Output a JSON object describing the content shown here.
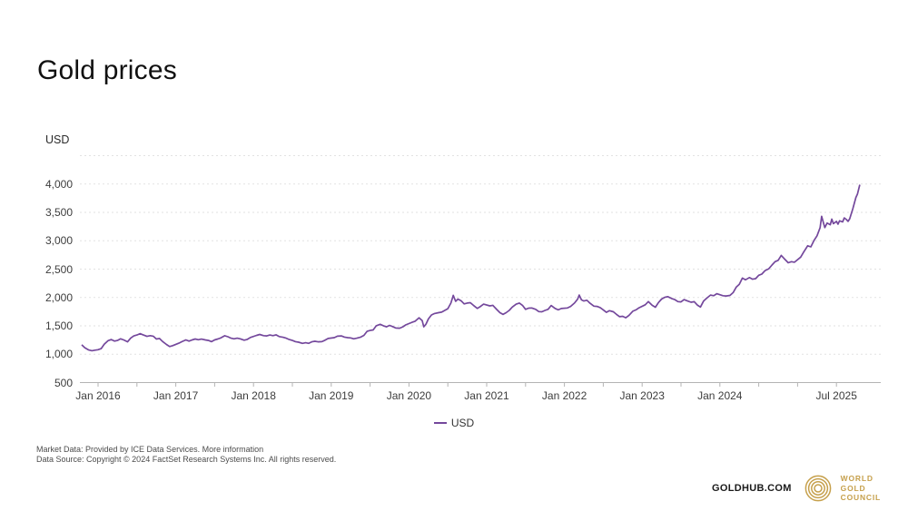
{
  "header": {
    "title": "Gold prices"
  },
  "chart_data": {
    "type": "line",
    "title": "Gold prices",
    "unit_label": "USD",
    "grid": "dashed-horizontal",
    "accent_color": "#74489c",
    "legend": {
      "position": "bottom",
      "label": "USD"
    },
    "y_axis": {
      "min": 500,
      "max": 4500,
      "ticks": [
        {
          "value": 500,
          "label": "500"
        },
        {
          "value": 1000,
          "label": "1,000"
        },
        {
          "value": 1500,
          "label": "1,500"
        },
        {
          "value": 2000,
          "label": "2,000"
        },
        {
          "value": 2500,
          "label": "2,500"
        },
        {
          "value": 3000,
          "label": "3,000"
        },
        {
          "value": 3500,
          "label": "3,500"
        },
        {
          "value": 4000,
          "label": "4,000"
        }
      ],
      "grid_values": [
        1000,
        1500,
        2000,
        2500,
        3000,
        3500,
        4000,
        4500
      ]
    },
    "x_axis": {
      "tick_positions": [
        2016,
        2016.5,
        2017,
        2017.5,
        2018,
        2018.5,
        2019,
        2019.5,
        2020,
        2020.5,
        2021,
        2021.5,
        2022,
        2022.5,
        2023,
        2023.5,
        2024,
        2024.5,
        2025,
        2025.5
      ],
      "labels": [
        {
          "x": 2016,
          "label": "Jan 2016"
        },
        {
          "x": 2017,
          "label": "Jan 2017"
        },
        {
          "x": 2018,
          "label": "Jan 2018"
        },
        {
          "x": 2019,
          "label": "Jan 2019"
        },
        {
          "x": 2020,
          "label": "Jan 2020"
        },
        {
          "x": 2021,
          "label": "Jan 2021"
        },
        {
          "x": 2022,
          "label": "Jan 2022"
        },
        {
          "x": 2023,
          "label": "Jan 2023"
        },
        {
          "x": 2024,
          "label": "Jan 2024"
        },
        {
          "x": 2025.5,
          "label": "Jul 2025"
        }
      ]
    },
    "series": [
      {
        "name": "USD",
        "color": "#74489c",
        "points": [
          [
            2015.79,
            1165
          ],
          [
            2015.83,
            1115
          ],
          [
            2015.88,
            1075
          ],
          [
            2015.92,
            1062
          ],
          [
            2015.96,
            1072
          ],
          [
            2016.0,
            1080
          ],
          [
            2016.04,
            1098
          ],
          [
            2016.08,
            1175
          ],
          [
            2016.13,
            1240
          ],
          [
            2016.17,
            1258
          ],
          [
            2016.21,
            1232
          ],
          [
            2016.25,
            1242
          ],
          [
            2016.29,
            1272
          ],
          [
            2016.33,
            1252
          ],
          [
            2016.38,
            1218
          ],
          [
            2016.42,
            1285
          ],
          [
            2016.46,
            1322
          ],
          [
            2016.5,
            1338
          ],
          [
            2016.54,
            1362
          ],
          [
            2016.58,
            1342
          ],
          [
            2016.63,
            1315
          ],
          [
            2016.67,
            1328
          ],
          [
            2016.71,
            1318
          ],
          [
            2016.75,
            1268
          ],
          [
            2016.79,
            1278
          ],
          [
            2016.83,
            1225
          ],
          [
            2016.88,
            1172
          ],
          [
            2016.92,
            1135
          ],
          [
            2016.96,
            1152
          ],
          [
            2017.04,
            1195
          ],
          [
            2017.08,
            1222
          ],
          [
            2017.13,
            1252
          ],
          [
            2017.17,
            1232
          ],
          [
            2017.21,
            1252
          ],
          [
            2017.25,
            1268
          ],
          [
            2017.29,
            1255
          ],
          [
            2017.33,
            1266
          ],
          [
            2017.38,
            1252
          ],
          [
            2017.42,
            1242
          ],
          [
            2017.46,
            1222
          ],
          [
            2017.5,
            1252
          ],
          [
            2017.54,
            1268
          ],
          [
            2017.58,
            1288
          ],
          [
            2017.63,
            1326
          ],
          [
            2017.67,
            1308
          ],
          [
            2017.71,
            1282
          ],
          [
            2017.75,
            1272
          ],
          [
            2017.79,
            1282
          ],
          [
            2017.83,
            1272
          ],
          [
            2017.88,
            1248
          ],
          [
            2017.92,
            1262
          ],
          [
            2017.96,
            1296
          ],
          [
            2018.04,
            1332
          ],
          [
            2018.08,
            1348
          ],
          [
            2018.13,
            1328
          ],
          [
            2018.17,
            1322
          ],
          [
            2018.21,
            1338
          ],
          [
            2018.25,
            1328
          ],
          [
            2018.29,
            1342
          ],
          [
            2018.33,
            1312
          ],
          [
            2018.38,
            1298
          ],
          [
            2018.42,
            1282
          ],
          [
            2018.46,
            1258
          ],
          [
            2018.5,
            1242
          ],
          [
            2018.54,
            1222
          ],
          [
            2018.58,
            1212
          ],
          [
            2018.63,
            1192
          ],
          [
            2018.67,
            1202
          ],
          [
            2018.71,
            1192
          ],
          [
            2018.75,
            1218
          ],
          [
            2018.79,
            1228
          ],
          [
            2018.83,
            1218
          ],
          [
            2018.88,
            1222
          ],
          [
            2018.92,
            1248
          ],
          [
            2018.96,
            1278
          ],
          [
            2019.04,
            1292
          ],
          [
            2019.08,
            1318
          ],
          [
            2019.13,
            1322
          ],
          [
            2019.17,
            1302
          ],
          [
            2019.21,
            1292
          ],
          [
            2019.25,
            1288
          ],
          [
            2019.29,
            1272
          ],
          [
            2019.33,
            1282
          ],
          [
            2019.38,
            1302
          ],
          [
            2019.42,
            1332
          ],
          [
            2019.46,
            1402
          ],
          [
            2019.5,
            1418
          ],
          [
            2019.54,
            1428
          ],
          [
            2019.58,
            1502
          ],
          [
            2019.63,
            1528
          ],
          [
            2019.67,
            1502
          ],
          [
            2019.71,
            1482
          ],
          [
            2019.75,
            1508
          ],
          [
            2019.79,
            1488
          ],
          [
            2019.83,
            1462
          ],
          [
            2019.88,
            1458
          ],
          [
            2019.92,
            1482
          ],
          [
            2019.96,
            1518
          ],
          [
            2020.04,
            1562
          ],
          [
            2020.08,
            1582
          ],
          [
            2020.13,
            1642
          ],
          [
            2020.17,
            1592
          ],
          [
            2020.19,
            1482
          ],
          [
            2020.22,
            1532
          ],
          [
            2020.25,
            1622
          ],
          [
            2020.29,
            1692
          ],
          [
            2020.33,
            1718
          ],
          [
            2020.38,
            1732
          ],
          [
            2020.42,
            1742
          ],
          [
            2020.46,
            1772
          ],
          [
            2020.5,
            1802
          ],
          [
            2020.54,
            1902
          ],
          [
            2020.57,
            2038
          ],
          [
            2020.6,
            1932
          ],
          [
            2020.63,
            1972
          ],
          [
            2020.67,
            1942
          ],
          [
            2020.71,
            1888
          ],
          [
            2020.75,
            1902
          ],
          [
            2020.79,
            1908
          ],
          [
            2020.83,
            1862
          ],
          [
            2020.88,
            1808
          ],
          [
            2020.92,
            1842
          ],
          [
            2020.96,
            1882
          ],
          [
            2021.04,
            1852
          ],
          [
            2021.08,
            1862
          ],
          [
            2021.13,
            1788
          ],
          [
            2021.17,
            1732
          ],
          [
            2021.21,
            1702
          ],
          [
            2021.25,
            1732
          ],
          [
            2021.29,
            1772
          ],
          [
            2021.33,
            1832
          ],
          [
            2021.38,
            1882
          ],
          [
            2021.42,
            1902
          ],
          [
            2021.46,
            1862
          ],
          [
            2021.5,
            1792
          ],
          [
            2021.54,
            1812
          ],
          [
            2021.58,
            1816
          ],
          [
            2021.63,
            1792
          ],
          [
            2021.67,
            1752
          ],
          [
            2021.71,
            1748
          ],
          [
            2021.75,
            1772
          ],
          [
            2021.79,
            1792
          ],
          [
            2021.83,
            1858
          ],
          [
            2021.88,
            1808
          ],
          [
            2021.92,
            1782
          ],
          [
            2021.96,
            1806
          ],
          [
            2022.04,
            1816
          ],
          [
            2022.08,
            1842
          ],
          [
            2022.13,
            1902
          ],
          [
            2022.17,
            1972
          ],
          [
            2022.19,
            2042
          ],
          [
            2022.22,
            1958
          ],
          [
            2022.25,
            1938
          ],
          [
            2022.29,
            1952
          ],
          [
            2022.33,
            1898
          ],
          [
            2022.38,
            1848
          ],
          [
            2022.42,
            1842
          ],
          [
            2022.46,
            1822
          ],
          [
            2022.5,
            1782
          ],
          [
            2022.54,
            1738
          ],
          [
            2022.58,
            1768
          ],
          [
            2022.63,
            1748
          ],
          [
            2022.67,
            1702
          ],
          [
            2022.71,
            1662
          ],
          [
            2022.75,
            1668
          ],
          [
            2022.79,
            1642
          ],
          [
            2022.83,
            1682
          ],
          [
            2022.88,
            1758
          ],
          [
            2022.92,
            1782
          ],
          [
            2022.96,
            1818
          ],
          [
            2023.04,
            1872
          ],
          [
            2023.08,
            1928
          ],
          [
            2023.13,
            1862
          ],
          [
            2023.17,
            1828
          ],
          [
            2023.21,
            1912
          ],
          [
            2023.25,
            1972
          ],
          [
            2023.29,
            2002
          ],
          [
            2023.33,
            2016
          ],
          [
            2023.38,
            1982
          ],
          [
            2023.42,
            1962
          ],
          [
            2023.46,
            1928
          ],
          [
            2023.5,
            1922
          ],
          [
            2023.54,
            1962
          ],
          [
            2023.58,
            1942
          ],
          [
            2023.63,
            1916
          ],
          [
            2023.67,
            1926
          ],
          [
            2023.71,
            1866
          ],
          [
            2023.75,
            1832
          ],
          [
            2023.79,
            1936
          ],
          [
            2023.83,
            1986
          ],
          [
            2023.88,
            2042
          ],
          [
            2023.92,
            2032
          ],
          [
            2023.96,
            2066
          ],
          [
            2024.04,
            2032
          ],
          [
            2024.08,
            2026
          ],
          [
            2024.13,
            2036
          ],
          [
            2024.17,
            2086
          ],
          [
            2024.21,
            2182
          ],
          [
            2024.25,
            2232
          ],
          [
            2024.29,
            2342
          ],
          [
            2024.33,
            2312
          ],
          [
            2024.38,
            2352
          ],
          [
            2024.42,
            2322
          ],
          [
            2024.46,
            2332
          ],
          [
            2024.5,
            2392
          ],
          [
            2024.54,
            2412
          ],
          [
            2024.58,
            2472
          ],
          [
            2024.63,
            2506
          ],
          [
            2024.67,
            2572
          ],
          [
            2024.71,
            2632
          ],
          [
            2024.75,
            2656
          ],
          [
            2024.79,
            2742
          ],
          [
            2024.83,
            2682
          ],
          [
            2024.88,
            2612
          ],
          [
            2024.92,
            2632
          ],
          [
            2024.96,
            2622
          ],
          [
            2025.04,
            2712
          ],
          [
            2025.08,
            2802
          ],
          [
            2025.13,
            2912
          ],
          [
            2025.17,
            2892
          ],
          [
            2025.21,
            3002
          ],
          [
            2025.25,
            3088
          ],
          [
            2025.29,
            3232
          ],
          [
            2025.31,
            3432
          ],
          [
            2025.33,
            3332
          ],
          [
            2025.35,
            3232
          ],
          [
            2025.38,
            3312
          ],
          [
            2025.42,
            3282
          ],
          [
            2025.44,
            3382
          ],
          [
            2025.46,
            3302
          ],
          [
            2025.5,
            3342
          ],
          [
            2025.52,
            3292
          ],
          [
            2025.54,
            3352
          ],
          [
            2025.58,
            3332
          ],
          [
            2025.6,
            3402
          ],
          [
            2025.63,
            3372
          ],
          [
            2025.65,
            3342
          ],
          [
            2025.67,
            3388
          ],
          [
            2025.71,
            3562
          ],
          [
            2025.75,
            3762
          ],
          [
            2025.77,
            3822
          ],
          [
            2025.8,
            3988
          ]
        ]
      }
    ]
  },
  "footer": {
    "market_data": "Market Data: Provided by ICE Data Services.",
    "more_information": "More information",
    "data_source": "Data Source: Copyright © 2024 FactSet Research Systems Inc. All rights reserved."
  },
  "branding": {
    "goldhub": "GOLDHUB.COM",
    "council_lines": [
      "WORLD",
      "GOLD",
      "COUNCIL"
    ],
    "gold_color": "#c6a04c"
  }
}
